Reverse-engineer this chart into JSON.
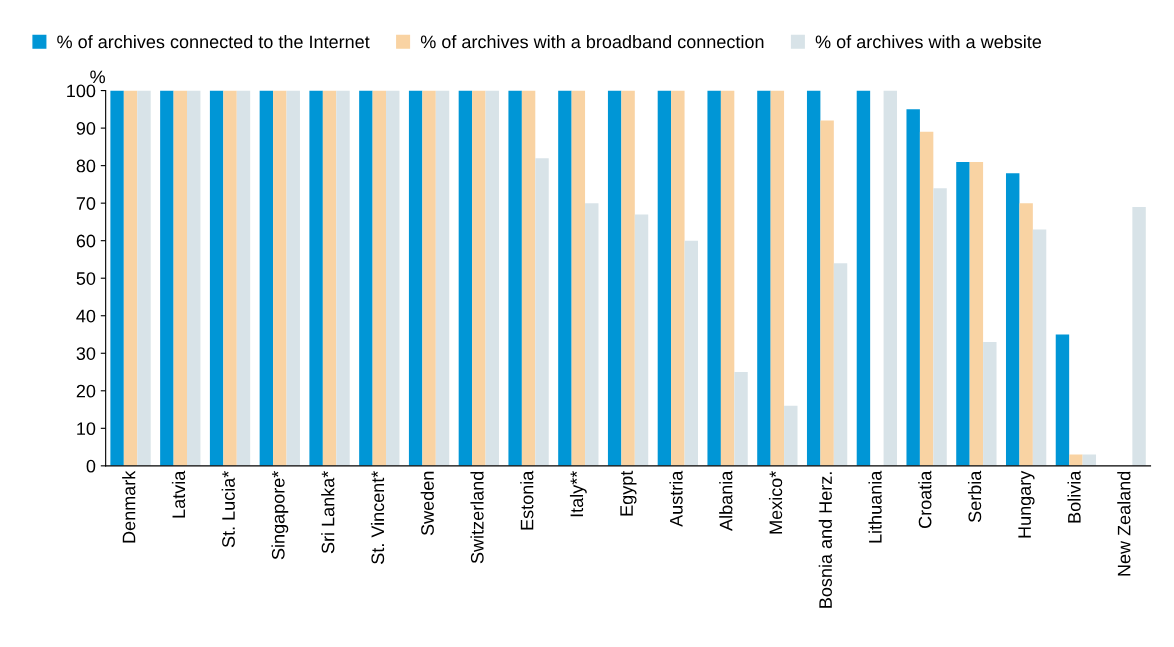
{
  "chart_data": {
    "type": "bar",
    "ylabel": "%",
    "categories": [
      "Denmark",
      "Latvia",
      "St. Lucia*",
      "Singapore*",
      "Sri Lanka*",
      "St. Vincent*",
      "Sweden",
      "Switzerland",
      "Estonia",
      "Italy**",
      "Egypt",
      "Austria",
      "Albania",
      "Mexico*",
      "Bosnia and Herz.",
      "Lithuania",
      "Croatia",
      "Serbia",
      "Hungary",
      "Bolivia",
      "New Zealand"
    ],
    "series": [
      {
        "name": "% of archives connected to the Internet",
        "color": "#0096d6",
        "values": [
          100,
          100,
          100,
          100,
          100,
          100,
          100,
          100,
          100,
          100,
          100,
          100,
          100,
          100,
          100,
          100,
          95,
          81,
          78,
          35,
          null
        ]
      },
      {
        "name": "% of archives with a broadband connection",
        "color": "#f9d3a3",
        "values": [
          100,
          100,
          100,
          100,
          100,
          100,
          100,
          100,
          100,
          100,
          100,
          100,
          100,
          100,
          92,
          null,
          89,
          81,
          70,
          3,
          null
        ]
      },
      {
        "name": "% of archives with a website",
        "color": "#d8e3e8",
        "values": [
          100,
          100,
          100,
          100,
          100,
          100,
          100,
          100,
          82,
          70,
          67,
          60,
          25,
          16,
          54,
          100,
          74,
          33,
          63,
          3,
          69
        ]
      }
    ],
    "ylim": [
      0,
      100
    ],
    "yticks": [
      0,
      10,
      20,
      30,
      40,
      50,
      60,
      70,
      80,
      90,
      100
    ],
    "grid": false,
    "legend": "top left"
  }
}
